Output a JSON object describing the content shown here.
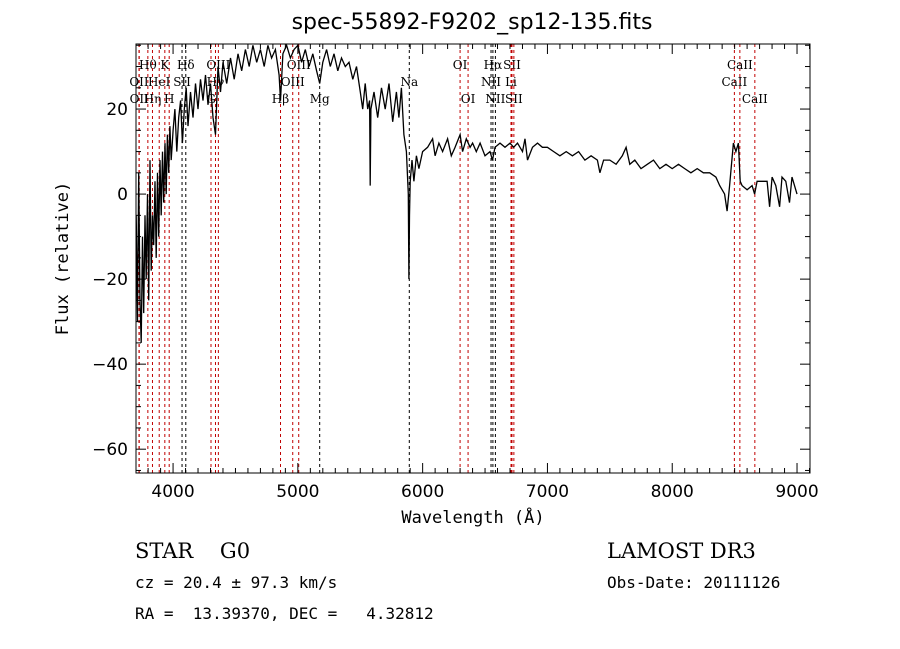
{
  "chart_data": {
    "type": "line",
    "title": "spec-55892-F9202_sp12-135.fits",
    "xlabel": "Wavelength (Å)",
    "ylabel": "Flux (relative)",
    "xlim": [
      3703,
      9104
    ],
    "ylim": [
      -65.6,
      35.3
    ],
    "xticks": [
      4000,
      5000,
      6000,
      7000,
      8000,
      9000
    ],
    "yticks": [
      -60,
      -40,
      -20,
      0,
      20
    ],
    "grid": false,
    "series": [
      {
        "name": "spectrum",
        "x": [
          3705,
          3715,
          3725,
          3735,
          3745,
          3755,
          3765,
          3775,
          3785,
          3795,
          3805,
          3815,
          3825,
          3835,
          3845,
          3855,
          3865,
          3875,
          3885,
          3895,
          3905,
          3915,
          3925,
          3935,
          3945,
          3955,
          3965,
          3975,
          3985,
          4000,
          4015,
          4030,
          4045,
          4060,
          4075,
          4090,
          4105,
          4120,
          4140,
          4160,
          4180,
          4200,
          4220,
          4240,
          4260,
          4280,
          4300,
          4320,
          4340,
          4360,
          4380,
          4400,
          4430,
          4460,
          4490,
          4520,
          4550,
          4580,
          4610,
          4640,
          4670,
          4700,
          4730,
          4760,
          4790,
          4820,
          4850,
          4861,
          4880,
          4910,
          4940,
          4970,
          5000,
          5030,
          5060,
          5090,
          5120,
          5150,
          5175,
          5200,
          5230,
          5260,
          5290,
          5320,
          5350,
          5380,
          5410,
          5440,
          5470,
          5500,
          5520,
          5540,
          5560,
          5575,
          5580,
          5585,
          5610,
          5640,
          5670,
          5700,
          5730,
          5760,
          5790,
          5810,
          5830,
          5850,
          5870,
          5885,
          5890,
          5895,
          5900,
          5915,
          5930,
          5950,
          5970,
          6000,
          6040,
          6080,
          6100,
          6130,
          6160,
          6200,
          6230,
          6260,
          6300,
          6320,
          6350,
          6380,
          6400,
          6430,
          6460,
          6500,
          6540,
          6560,
          6580,
          6620,
          6660,
          6700,
          6730,
          6760,
          6800,
          6820,
          6840,
          6880,
          6920,
          6960,
          7000,
          7050,
          7100,
          7150,
          7200,
          7250,
          7300,
          7350,
          7400,
          7420,
          7450,
          7500,
          7550,
          7600,
          7630,
          7660,
          7700,
          7750,
          7800,
          7850,
          7900,
          7950,
          8000,
          8050,
          8100,
          8150,
          8200,
          8250,
          8300,
          8350,
          8380,
          8420,
          8440,
          8460,
          8490,
          8510,
          8530,
          8545,
          8560,
          8600,
          8640,
          8660,
          8680,
          8720,
          8760,
          8780,
          8800,
          8830,
          8860,
          8880,
          8910,
          8940,
          8960,
          8980,
          9000
        ],
        "y": [
          -5,
          -30,
          5,
          -25,
          -35,
          -10,
          -28,
          -5,
          -20,
          0,
          -25,
          8,
          -18,
          -5,
          -12,
          3,
          -15,
          5,
          -10,
          8,
          -5,
          10,
          -2,
          12,
          0,
          14,
          5,
          16,
          8,
          15,
          20,
          10,
          18,
          22,
          12,
          20,
          25,
          16,
          24,
          18,
          26,
          20,
          27,
          22,
          28,
          21,
          26,
          18,
          14,
          30,
          24,
          31,
          26,
          32,
          27,
          33,
          29,
          34,
          30,
          35,
          31,
          34,
          30,
          35,
          32,
          34,
          28,
          22,
          33,
          35,
          32,
          34,
          35,
          31,
          34,
          30,
          33,
          29,
          26,
          31,
          34,
          30,
          33,
          29,
          32,
          30,
          31,
          27,
          30,
          24,
          20,
          26,
          20,
          22,
          2,
          20,
          24,
          18,
          25,
          20,
          26,
          17,
          24,
          18,
          25,
          14,
          10,
          0,
          -20,
          -5,
          3,
          8,
          3,
          9,
          6,
          10,
          11,
          13,
          9,
          12,
          10,
          13,
          9,
          11,
          14,
          10,
          13,
          11,
          12,
          10,
          12,
          9,
          10,
          8,
          11,
          12,
          11,
          12,
          11,
          12,
          10,
          13,
          8,
          11,
          12,
          11,
          11,
          10,
          9,
          10,
          9,
          10,
          8,
          9,
          8,
          5,
          8,
          8,
          7,
          9,
          11,
          7,
          8,
          6,
          7,
          8,
          6,
          7,
          6,
          7,
          6,
          5,
          6,
          5,
          5,
          4,
          2,
          0,
          -4,
          2,
          12,
          10,
          12,
          3,
          2,
          1,
          2,
          0,
          3,
          3,
          3,
          -3,
          4,
          2,
          -3,
          4,
          3,
          -2,
          4,
          2,
          0
        ]
      }
    ],
    "lines": [
      {
        "label": "OII",
        "w": 3727,
        "row": 2,
        "color": "#c00000"
      },
      {
        "label": "OII",
        "w": 3729,
        "row": 3,
        "color": "#c00000"
      },
      {
        "label": "Hθ",
        "w": 3798,
        "row": 1,
        "color": "#c00000"
      },
      {
        "label": "Hη",
        "w": 3835,
        "row": 3,
        "color": "#c00000"
      },
      {
        "label": "HeI",
        "w": 3889,
        "row": 2,
        "color": "#c00000"
      },
      {
        "label": "K",
        "w": 3934,
        "row": 1,
        "color": "#c00000"
      },
      {
        "label": "H",
        "w": 3969,
        "row": 3,
        "color": "#c00000"
      },
      {
        "label": "SII",
        "w": 4072,
        "row": 2,
        "color": "#000000"
      },
      {
        "label": "Hδ",
        "w": 4102,
        "row": 1,
        "color": "#000000"
      },
      {
        "label": "G",
        "w": 4304,
        "row": 3,
        "color": "#c00000"
      },
      {
        "label": "Hγ",
        "w": 4340,
        "row": 2,
        "color": "#c00000"
      },
      {
        "label": "OIII",
        "w": 4363,
        "row": 1,
        "color": "#c00000"
      },
      {
        "label": "Hβ",
        "w": 4861,
        "row": 3,
        "color": "#c00000"
      },
      {
        "label": "OIII",
        "w": 4959,
        "row": 2,
        "color": "#c00000"
      },
      {
        "label": "OIII",
        "w": 5007,
        "row": 1,
        "color": "#c00000"
      },
      {
        "label": "Mg",
        "w": 5175,
        "row": 3,
        "color": "#000000"
      },
      {
        "label": "Na",
        "w": 5893,
        "row": 2,
        "color": "#000000"
      },
      {
        "label": "OI",
        "w": 6300,
        "row": 1,
        "color": "#c00000"
      },
      {
        "label": "OI",
        "w": 6364,
        "row": 3,
        "color": "#c00000"
      },
      {
        "label": "NII",
        "w": 6548,
        "row": 2,
        "color": "#000000"
      },
      {
        "label": "Hα",
        "w": 6563,
        "row": 1,
        "color": "#000000"
      },
      {
        "label": "NII",
        "w": 6583,
        "row": 3,
        "color": "#000000"
      },
      {
        "label": "Li",
        "w": 6708,
        "row": 2,
        "color": "#c00000"
      },
      {
        "label": "SII",
        "w": 6716,
        "row": 1,
        "color": "#c00000"
      },
      {
        "label": "SII",
        "w": 6731,
        "row": 3,
        "color": "#c00000"
      },
      {
        "label": "CaII",
        "w": 8498,
        "row": 2,
        "color": "#c00000"
      },
      {
        "label": "CaII",
        "w": 8542,
        "row": 1,
        "color": "#c00000"
      },
      {
        "label": "CaII",
        "w": 8662,
        "row": 3,
        "color": "#c00000"
      }
    ]
  },
  "info": {
    "class": "STAR    G0",
    "cz": "cz = 20.4 ± 97.3 km/s",
    "coords": "RA =  13.39370, DEC =   4.32812",
    "survey": "LAMOST DR3",
    "obs_date": "Obs-Date: 20111126"
  }
}
